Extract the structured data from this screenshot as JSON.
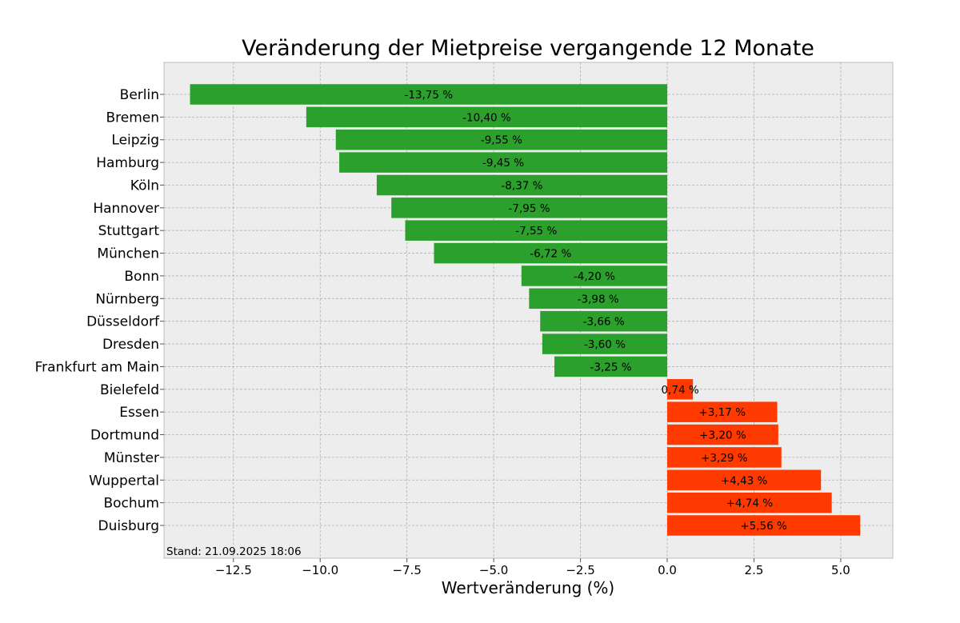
{
  "chart_data": {
    "type": "bar",
    "orientation": "horizontal",
    "title": "Veränderung der Mietpreise vergangende 12 Monate",
    "xlabel": "Wertveränderung (%)",
    "ylabel": "",
    "xlim": [
      -14.5,
      6.5
    ],
    "xticks": [
      -12.5,
      -10.0,
      -7.5,
      -5.0,
      -2.5,
      0.0,
      2.5,
      5.0
    ],
    "xtick_labels": [
      "−12.5",
      "−10.0",
      "−7.5",
      "−5.0",
      "−2.5",
      "0.0",
      "2.5",
      "5.0"
    ],
    "grid": true,
    "categories": [
      "Berlin",
      "Bremen",
      "Leipzig",
      "Hamburg",
      "Köln",
      "Hannover",
      "Stuttgart",
      "München",
      "Bonn",
      "Nürnberg",
      "Düsseldorf",
      "Dresden",
      "Frankfurt am Main",
      "Bielefeld",
      "Essen",
      "Dortmund",
      "Münster",
      "Wuppertal",
      "Bochum",
      "Duisburg"
    ],
    "values": [
      -13.75,
      -10.4,
      -9.55,
      -9.45,
      -8.37,
      -7.95,
      -7.55,
      -6.72,
      -4.2,
      -3.98,
      -3.66,
      -3.6,
      -3.25,
      0.74,
      3.17,
      3.2,
      3.29,
      4.43,
      4.74,
      5.56
    ],
    "data_labels": [
      "-13,75 %",
      "-10,40 %",
      "-9,55 %",
      "-9,45 %",
      "-8,37 %",
      "-7,95 %",
      "-7,55 %",
      "-6,72 %",
      "-4,20 %",
      "-3,98 %",
      "-3,66 %",
      "-3,60 %",
      "-3,25 %",
      "0,74 %",
      "+3,17 %",
      "+3,20 %",
      "+3,29 %",
      "+4,43 %",
      "+4,74 %",
      "+5,56 %"
    ],
    "annotation": "Stand: 21.09.2025 18:06",
    "colors": {
      "negative": "#2ca02c",
      "positive": "#ff3a00",
      "plot_background": "#ededed",
      "grid": "#b0b0b0"
    }
  }
}
